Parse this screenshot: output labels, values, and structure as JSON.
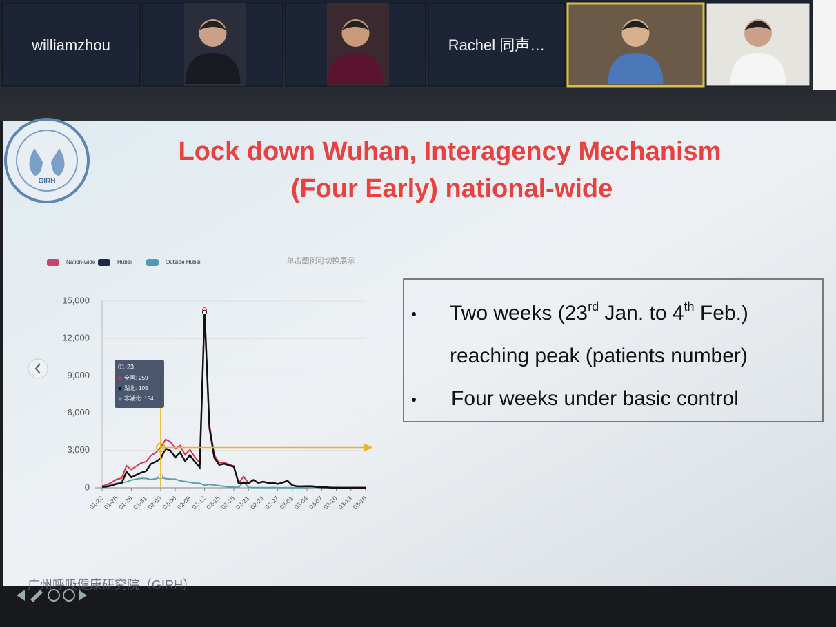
{
  "participants": [
    {
      "name": "williamzhou"
    },
    {},
    {},
    {
      "name": "Rachel 同声…"
    },
    {},
    {}
  ],
  "slide": {
    "logo": "GIRH",
    "title_lines": [
      "Lock down Wuhan, Interagency Mechanism",
      "(Four Early) national-wide"
    ],
    "bullets": [
      {
        "parts": [
          "Two weeks (23",
          "rd",
          " Jan. to 4",
          "th",
          " Feb.)"
        ]
      },
      {
        "parts": [
          "reaching peak (patients number)"
        ]
      },
      {
        "parts": [
          "Four weeks under basic control"
        ]
      }
    ],
    "footer": "广州呼吸健康研究院（GIRH）"
  },
  "chart_data": {
    "type": "line",
    "legend_hint": "单击图例可切换展示",
    "categories": [
      "01-22",
      null,
      null,
      "01-25",
      null,
      null,
      "01-28",
      null,
      null,
      "01-31",
      null,
      null,
      "02-03",
      null,
      null,
      "02-06",
      null,
      null,
      "02-09",
      null,
      null,
      "02-12",
      null,
      null,
      "02-15",
      null,
      null,
      "02-18",
      null,
      null,
      "02-21",
      null,
      null,
      "02-24",
      null,
      null,
      "02-27",
      null,
      null,
      "03-01",
      null,
      null,
      "03-04",
      null,
      null,
      "03-07",
      null,
      null,
      "03-10",
      null,
      null,
      "03-13",
      null,
      null,
      "03-16"
    ],
    "series": [
      {
        "name": "Nation-wide",
        "color": "#d9344f",
        "legend_color": "#c2476a",
        "values": [
          131,
          259,
          444,
          688,
          769,
          1771,
          1459,
          1737,
          1982,
          2102,
          2590,
          2829,
          3235,
          3887,
          3694,
          3143,
          3399,
          2656,
          3062,
          2478,
          2015,
          14300,
          5090,
          2641,
          2009,
          2048,
          1886,
          1749,
          394,
          889,
          397,
          648,
          409,
          508,
          406,
          433,
          327,
          427,
          573,
          202,
          125,
          119,
          139,
          143,
          99,
          44,
          40,
          19,
          24,
          15,
          8,
          11,
          20,
          16,
          21
        ]
      },
      {
        "name": "Hubei",
        "color": "#111111",
        "legend_color": "#1f2a4a",
        "values": [
          80,
          105,
          180,
          323,
          371,
          1291,
          840,
          1032,
          1220,
          1347,
          1921,
          2103,
          2345,
          3156,
          2987,
          2447,
          2841,
          2147,
          2618,
          2097,
          1638,
          14100,
          4823,
          2420,
          1843,
          1933,
          1807,
          1693,
          349,
          411,
          366,
          630,
          398,
          499,
          401,
          409,
          318,
          423,
          570,
          196,
          114,
          115,
          134,
          126,
          74,
          41,
          36,
          17,
          13,
          8,
          5,
          4,
          4,
          4,
          1
        ]
      },
      {
        "name": "Outside Hubei",
        "color": "#5f9ea8",
        "legend_color": "#4f9bb5",
        "values": [
          51,
          154,
          264,
          365,
          398,
          480,
          619,
          705,
          762,
          755,
          669,
          726,
          890,
          731,
          707,
          696,
          558,
          509,
          444,
          381,
          377,
          200,
          267,
          221,
          166,
          115,
          79,
          56,
          45,
          478,
          31,
          18,
          11,
          9,
          5,
          24,
          9,
          4,
          3,
          6,
          11,
          4,
          5,
          17,
          25,
          3,
          4,
          2,
          11,
          7,
          3,
          7,
          16,
          12,
          20
        ]
      }
    ],
    "ylim": [
      0,
      15000
    ],
    "yticks": [
      0,
      {
        "value": 3000,
        "label": "3,000"
      },
      {
        "value": 6000,
        "label": "6,000"
      },
      {
        "value": 9000,
        "label": "9,000"
      },
      {
        "value": 12000,
        "label": "12,000"
      },
      {
        "value": 15000,
        "label": "15,000"
      }
    ],
    "grid": true,
    "tooltip": {
      "date": "01-23",
      "items": [
        {
          "label": "全国:",
          "value": 259
        },
        {
          "label": "湖北:",
          "value": 105
        },
        {
          "label": "非湖北:",
          "value": 154
        }
      ]
    }
  }
}
